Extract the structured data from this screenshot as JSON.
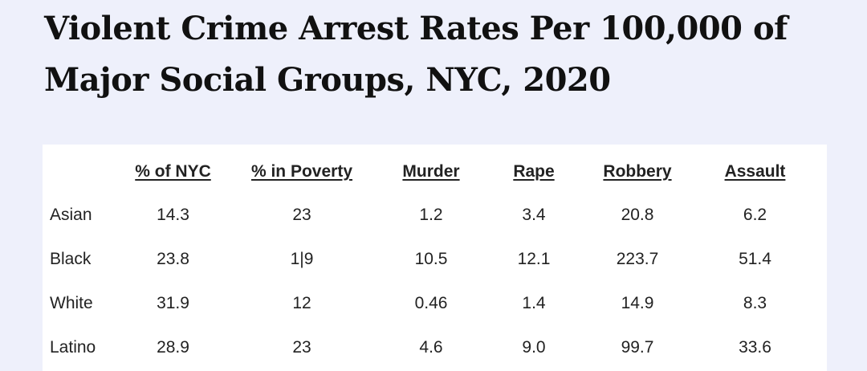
{
  "title": {
    "line1": "Violent Crime Arrest Rates Per 100,000 of",
    "line2": "Major Social Groups, NYC, 2020"
  },
  "chart_data": {
    "type": "table",
    "title": "Violent Crime Arrest Rates Per 100,000 of Major Social Groups, NYC, 2020",
    "columns": [
      "",
      "% of NYC",
      "% in Poverty",
      "Murder",
      "Rape",
      "Robbery",
      "Assault"
    ],
    "rows": [
      {
        "label": "Asian",
        "values": [
          "14.3",
          "23",
          "1.2",
          "3.4",
          "20.8",
          "6.2"
        ]
      },
      {
        "label": "Black",
        "values": [
          "23.8",
          "1|9",
          "10.5",
          "12.1",
          "223.7",
          "51.4"
        ]
      },
      {
        "label": "White",
        "values": [
          "31.9",
          "12",
          "0.46",
          "1.4",
          "14.9",
          "8.3"
        ]
      },
      {
        "label": "Latino",
        "values": [
          "28.9",
          "23",
          "4.6",
          "9.0",
          "99.7",
          "33.6"
        ]
      }
    ]
  }
}
